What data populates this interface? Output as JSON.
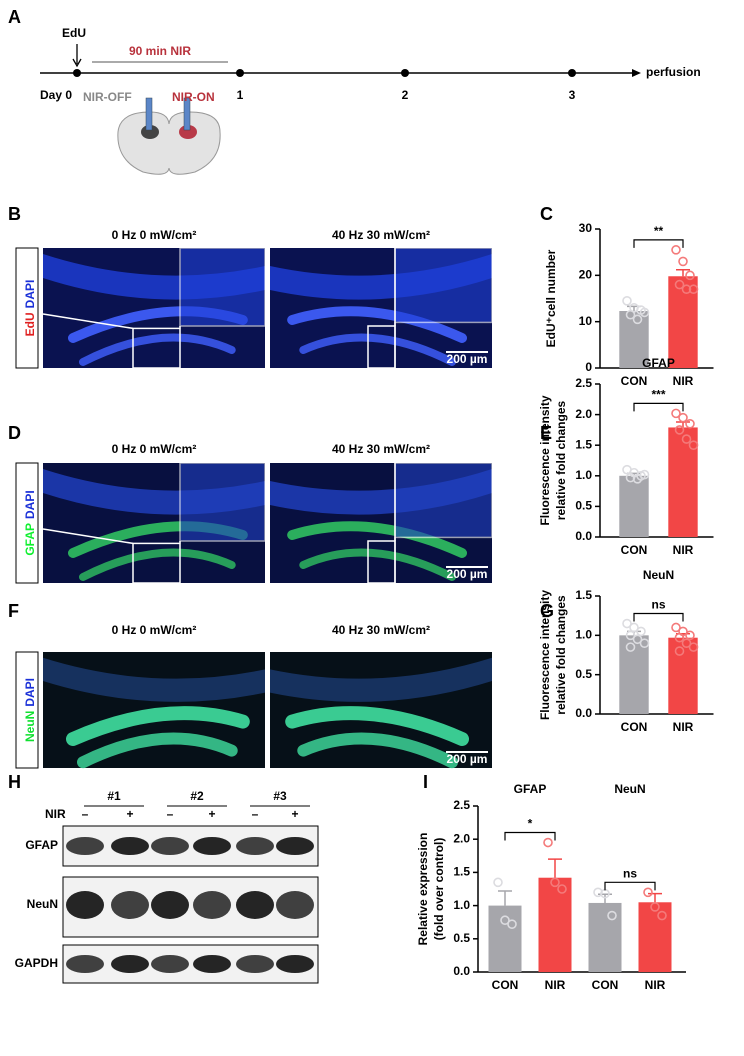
{
  "panel_labels": [
    "A",
    "B",
    "C",
    "D",
    "E",
    "F",
    "G",
    "H",
    "I"
  ],
  "timeline": {
    "edu": "EdU",
    "nir": "90 min NIR",
    "days": [
      "Day 0",
      "1",
      "2",
      "3"
    ],
    "end": "perfusion",
    "nir_off": "NIR-OFF",
    "nir_on": "NIR-ON"
  },
  "images": {
    "conditions": [
      "0 Hz 0 mW/cm²",
      "40 Hz 30 mW/cm²"
    ],
    "rows": [
      {
        "stain": [
          "EdU",
          "DAPI"
        ]
      },
      {
        "stain": [
          "GFAP",
          "DAPI"
        ]
      },
      {
        "stain": [
          "NeuN",
          "DAPI"
        ]
      }
    ],
    "scale_bar": "200 µm"
  },
  "blot": {
    "samples": [
      "#1",
      "#2",
      "#3"
    ],
    "treatment": "NIR",
    "signs": [
      "–",
      "+"
    ],
    "proteins": [
      "GFAP",
      "NeuN",
      "GAPDH"
    ]
  },
  "chart_data": [
    {
      "type": "bar",
      "categories": [
        "CON",
        "NIR"
      ],
      "values": [
        12.3,
        19.8
      ],
      "errors": [
        1.0,
        1.4
      ],
      "points": [
        [
          14.5,
          13,
          12.5,
          11.5,
          10.5,
          12
        ],
        [
          25.5,
          23,
          20,
          18,
          17,
          17
        ]
      ],
      "colors": [
        "#a6a6ab",
        "#f24646"
      ],
      "point_colors": [
        "#dcdce0",
        "#f47a7a"
      ],
      "ylabel": [
        "EdU⁺cell number"
      ],
      "ylim": [
        0,
        30
      ],
      "yticks": [
        0,
        10,
        20,
        30
      ],
      "significance": "**"
    },
    {
      "type": "bar",
      "title": "GFAP",
      "categories": [
        "CON",
        "NIR"
      ],
      "values": [
        1.0,
        1.79
      ],
      "errors": [
        0.04,
        0.09
      ],
      "points": [
        [
          1.1,
          1.05,
          1.0,
          0.97,
          0.95,
          1.02
        ],
        [
          2.02,
          1.95,
          1.85,
          1.75,
          1.6,
          1.5
        ]
      ],
      "colors": [
        "#a6a6ab",
        "#f24646"
      ],
      "point_colors": [
        "#dcdce0",
        "#f47a7a"
      ],
      "ylabel": [
        "Fluorescence intensity",
        "relative fold changes"
      ],
      "ylim": [
        0,
        2.5
      ],
      "yticks": [
        {
          "value": 0,
          "label": "0.0"
        },
        0.5,
        {
          "value": 1,
          "label": "1.0"
        },
        1.5,
        {
          "value": 2,
          "label": "2.0"
        },
        2.5
      ],
      "significance": "***"
    },
    {
      "type": "bar",
      "title": "NeuN",
      "categories": [
        "CON",
        "NIR"
      ],
      "values": [
        1.0,
        0.97
      ],
      "errors": [
        0.05,
        0.05
      ],
      "points": [
        [
          1.15,
          1.1,
          1.05,
          1.0,
          0.95,
          0.9,
          0.85
        ],
        [
          1.1,
          1.05,
          1.0,
          0.97,
          0.9,
          0.85,
          0.8
        ]
      ],
      "colors": [
        "#a6a6ab",
        "#f24646"
      ],
      "point_colors": [
        "#dcdce0",
        "#f47a7a"
      ],
      "ylabel": [
        "Fluorescence intensity",
        "relative fold changes"
      ],
      "ylim": [
        0,
        1.5
      ],
      "yticks": [
        {
          "value": 0,
          "label": "0.0"
        },
        0.5,
        {
          "value": 1,
          "label": "1.0"
        },
        1.5
      ],
      "significance": "ns"
    },
    {
      "type": "bar",
      "groups": [
        "GFAP",
        "NeuN"
      ],
      "categories": [
        "CON",
        "NIR",
        "CON",
        "NIR"
      ],
      "values": [
        1.0,
        1.42,
        1.04,
        1.05
      ],
      "errors": [
        0.22,
        0.28,
        0.13,
        0.13
      ],
      "points": [
        [
          1.35,
          0.78,
          0.72
        ],
        [
          1.95,
          1.35,
          1.25
        ],
        [
          1.2,
          1.18,
          0.85
        ],
        [
          1.2,
          0.98,
          0.85
        ]
      ],
      "colors": [
        "#a6a6ab",
        "#f24646",
        "#a6a6ab",
        "#f24646"
      ],
      "point_colors": [
        "#dcdce0",
        "#f47a7a",
        "#dcdce0",
        "#f47a7a"
      ],
      "ylabel": [
        "Relative expression",
        "(fold over control)"
      ],
      "ylim": [
        0,
        2.5
      ],
      "yticks": [
        {
          "value": 0,
          "label": "0.0"
        },
        0.5,
        {
          "value": 1,
          "label": "1.0"
        },
        1.5,
        {
          "value": 2,
          "label": "2.0"
        },
        2.5
      ],
      "significance": [
        "*",
        "ns"
      ]
    }
  ]
}
